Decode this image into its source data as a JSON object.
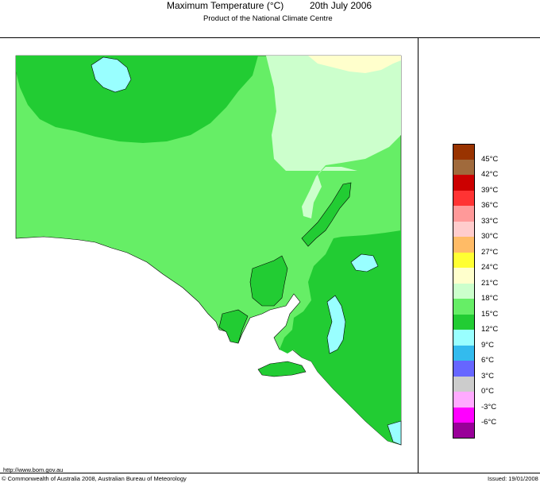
{
  "header": {
    "title": "Maximum Temperature (°C)",
    "date": "20th July 2006",
    "subtitle": "Product of the National Climate Centre"
  },
  "legend": {
    "items": [
      {
        "label": "45°C",
        "color": "#993300"
      },
      {
        "label": "42°C",
        "color": "#a06a3c"
      },
      {
        "label": "39°C",
        "color": "#cc0000"
      },
      {
        "label": "36°C",
        "color": "#ff3333"
      },
      {
        "label": "33°C",
        "color": "#ff9999"
      },
      {
        "label": "30°C",
        "color": "#ffcccc"
      },
      {
        "label": "27°C",
        "color": "#ffbb66"
      },
      {
        "label": "24°C",
        "color": "#ffff33"
      },
      {
        "label": "21°C",
        "color": "#ffffcc"
      },
      {
        "label": "18°C",
        "color": "#ccffcc"
      },
      {
        "label": "15°C",
        "color": "#66ee66"
      },
      {
        "label": "12°C",
        "color": "#22cc33"
      },
      {
        "label": "9°C",
        "color": "#99ffff"
      },
      {
        "label": "6°C",
        "color": "#33bbee"
      },
      {
        "label": "3°C",
        "color": "#6666ff"
      },
      {
        "label": "0°C",
        "color": "#cccccc"
      },
      {
        "label": "-3°C",
        "color": "#ffaaff"
      },
      {
        "label": "-6°C",
        "color": "#ff00ff"
      }
    ],
    "bottom_color": "#990099"
  },
  "map_colors": {
    "land_15": "#66ee66",
    "land_12": "#22cc33",
    "land_18": "#ccffcc",
    "land_21": "#ffffcc",
    "land_9": "#99ffff",
    "sea": "#ffffff"
  },
  "footer": {
    "url": "http://www.bom.gov.au",
    "copyright": "© Commonwealth of Australia 2008, Australian Bureau of Meteorology",
    "issued": "Issued: 19/01/2008"
  }
}
